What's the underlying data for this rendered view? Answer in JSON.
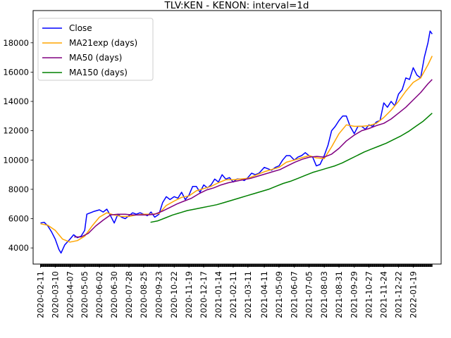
{
  "chart_data": {
    "type": "line",
    "title": "TLV:KEN - KENON: interval=1d",
    "xlabel": "",
    "ylabel": "",
    "ylim": [
      2900,
      20200
    ],
    "x_range": [
      "2020-01-28",
      "2022-03-13"
    ],
    "yticks": [
      4000,
      6000,
      8000,
      10000,
      12000,
      14000,
      16000,
      18000
    ],
    "ytick_labels": [
      "4000",
      "6000",
      "8000",
      "10000",
      "12000",
      "14000",
      "16000",
      "18000"
    ],
    "xticks": [
      "2020-02-11",
      "2020-03-10",
      "2020-04-07",
      "2020-05-05",
      "2020-06-02",
      "2020-06-30",
      "2020-07-28",
      "2020-08-25",
      "2020-09-23",
      "2020-10-22",
      "2020-11-19",
      "2020-12-17",
      "2021-01-14",
      "2021-02-11",
      "2021-03-11",
      "2021-04-11",
      "2021-05-09",
      "2021-06-07",
      "2021-07-05",
      "2021-08-03",
      "2021-08-31",
      "2021-09-29",
      "2021-10-27",
      "2021-11-24",
      "2021-12-22",
      "2022-01-19"
    ],
    "legend": {
      "placement": "upper-left"
    },
    "grid": false,
    "series": [
      {
        "name": "Close",
        "color": "#0000ff",
        "points": [
          [
            "2020-02-11",
            5700
          ],
          [
            "2020-02-18",
            5750
          ],
          [
            "2020-02-25",
            5500
          ],
          [
            "2020-03-03",
            5100
          ],
          [
            "2020-03-10",
            4600
          ],
          [
            "2020-03-17",
            3900
          ],
          [
            "2020-03-21",
            3650
          ],
          [
            "2020-03-28",
            4200
          ],
          [
            "2020-04-07",
            4600
          ],
          [
            "2020-04-14",
            4900
          ],
          [
            "2020-04-21",
            4700
          ],
          [
            "2020-04-28",
            4800
          ],
          [
            "2020-05-05",
            5200
          ],
          [
            "2020-05-09",
            6300
          ],
          [
            "2020-05-16",
            6400
          ],
          [
            "2020-05-23",
            6500
          ],
          [
            "2020-06-02",
            6600
          ],
          [
            "2020-06-09",
            6450
          ],
          [
            "2020-06-16",
            6650
          ],
          [
            "2020-06-23",
            6200
          ],
          [
            "2020-06-30",
            5700
          ],
          [
            "2020-07-07",
            6300
          ],
          [
            "2020-07-14",
            6100
          ],
          [
            "2020-07-21",
            6000
          ],
          [
            "2020-07-28",
            6200
          ],
          [
            "2020-08-04",
            6400
          ],
          [
            "2020-08-11",
            6300
          ],
          [
            "2020-08-18",
            6400
          ],
          [
            "2020-08-25",
            6300
          ],
          [
            "2020-09-01",
            6200
          ],
          [
            "2020-09-08",
            6450
          ],
          [
            "2020-09-15",
            6100
          ],
          [
            "2020-09-23",
            6300
          ],
          [
            "2020-09-30",
            7100
          ],
          [
            "2020-10-07",
            7500
          ],
          [
            "2020-10-14",
            7300
          ],
          [
            "2020-10-22",
            7500
          ],
          [
            "2020-10-29",
            7400
          ],
          [
            "2020-11-05",
            7800
          ],
          [
            "2020-11-12",
            7300
          ],
          [
            "2020-11-19",
            7600
          ],
          [
            "2020-11-26",
            8200
          ],
          [
            "2020-12-03",
            8200
          ],
          [
            "2020-12-10",
            7800
          ],
          [
            "2020-12-17",
            8300
          ],
          [
            "2020-12-24",
            8100
          ],
          [
            "2020-12-31",
            8300
          ],
          [
            "2021-01-07",
            8700
          ],
          [
            "2021-01-14",
            8500
          ],
          [
            "2021-01-21",
            9000
          ],
          [
            "2021-01-28",
            8700
          ],
          [
            "2021-02-04",
            8800
          ],
          [
            "2021-02-11",
            8500
          ],
          [
            "2021-02-18",
            8700
          ],
          [
            "2021-02-25",
            8700
          ],
          [
            "2021-03-04",
            8600
          ],
          [
            "2021-03-11",
            8800
          ],
          [
            "2021-03-18",
            9100
          ],
          [
            "2021-03-25",
            9000
          ],
          [
            "2021-04-01",
            9100
          ],
          [
            "2021-04-11",
            9500
          ],
          [
            "2021-04-18",
            9400
          ],
          [
            "2021-04-25",
            9300
          ],
          [
            "2021-05-02",
            9500
          ],
          [
            "2021-05-09",
            9600
          ],
          [
            "2021-05-16",
            10000
          ],
          [
            "2021-05-23",
            10300
          ],
          [
            "2021-05-30",
            10300
          ],
          [
            "2021-06-07",
            10000
          ],
          [
            "2021-06-14",
            10200
          ],
          [
            "2021-06-21",
            10300
          ],
          [
            "2021-06-28",
            10500
          ],
          [
            "2021-07-05",
            10300
          ],
          [
            "2021-07-12",
            10200
          ],
          [
            "2021-07-19",
            9600
          ],
          [
            "2021-07-26",
            9700
          ],
          [
            "2021-08-03",
            10300
          ],
          [
            "2021-08-10",
            11000
          ],
          [
            "2021-08-17",
            12000
          ],
          [
            "2021-08-24",
            12300
          ],
          [
            "2021-08-31",
            12700
          ],
          [
            "2021-09-07",
            13000
          ],
          [
            "2021-09-14",
            13000
          ],
          [
            "2021-09-21",
            12300
          ],
          [
            "2021-09-29",
            11800
          ],
          [
            "2021-10-06",
            12300
          ],
          [
            "2021-10-13",
            12300
          ],
          [
            "2021-10-20",
            12100
          ],
          [
            "2021-10-27",
            12400
          ],
          [
            "2021-11-03",
            12300
          ],
          [
            "2021-11-10",
            12600
          ],
          [
            "2021-11-17",
            12700
          ],
          [
            "2021-11-24",
            13900
          ],
          [
            "2021-12-01",
            13600
          ],
          [
            "2021-12-08",
            14000
          ],
          [
            "2021-12-15",
            13700
          ],
          [
            "2021-12-22",
            14500
          ],
          [
            "2021-12-29",
            14800
          ],
          [
            "2022-01-05",
            15600
          ],
          [
            "2022-01-12",
            15500
          ],
          [
            "2022-01-19",
            16300
          ],
          [
            "2022-01-26",
            15800
          ],
          [
            "2022-02-02",
            15600
          ],
          [
            "2022-02-09",
            17000
          ],
          [
            "2022-02-16",
            18000
          ],
          [
            "2022-02-20",
            18800
          ],
          [
            "2022-02-24",
            18600
          ]
        ]
      },
      {
        "name": "MA21exp (days)",
        "color": "#ffa500",
        "points": [
          [
            "2020-02-11",
            5650
          ],
          [
            "2020-02-25",
            5550
          ],
          [
            "2020-03-10",
            5200
          ],
          [
            "2020-03-24",
            4600
          ],
          [
            "2020-04-07",
            4400
          ],
          [
            "2020-04-21",
            4500
          ],
          [
            "2020-05-05",
            4800
          ],
          [
            "2020-05-19",
            5500
          ],
          [
            "2020-06-02",
            6100
          ],
          [
            "2020-06-16",
            6400
          ],
          [
            "2020-06-30",
            6250
          ],
          [
            "2020-07-14",
            6150
          ],
          [
            "2020-07-28",
            6150
          ],
          [
            "2020-08-11",
            6250
          ],
          [
            "2020-08-25",
            6300
          ],
          [
            "2020-09-08",
            6300
          ],
          [
            "2020-09-23",
            6350
          ],
          [
            "2020-10-07",
            6900
          ],
          [
            "2020-10-22",
            7200
          ],
          [
            "2020-11-05",
            7450
          ],
          [
            "2020-11-19",
            7550
          ],
          [
            "2020-12-03",
            7900
          ],
          [
            "2020-12-17",
            8050
          ],
          [
            "2020-12-31",
            8200
          ],
          [
            "2021-01-14",
            8450
          ],
          [
            "2021-01-28",
            8650
          ],
          [
            "2021-02-11",
            8650
          ],
          [
            "2021-02-25",
            8700
          ],
          [
            "2021-03-11",
            8750
          ],
          [
            "2021-03-25",
            8950
          ],
          [
            "2021-04-11",
            9200
          ],
          [
            "2021-04-25",
            9350
          ],
          [
            "2021-05-09",
            9500
          ],
          [
            "2021-05-23",
            9850
          ],
          [
            "2021-06-07",
            10000
          ],
          [
            "2021-06-21",
            10150
          ],
          [
            "2021-07-05",
            10300
          ],
          [
            "2021-07-19",
            10150
          ],
          [
            "2021-08-03",
            10100
          ],
          [
            "2021-08-17",
            10900
          ],
          [
            "2021-08-31",
            11800
          ],
          [
            "2021-09-14",
            12400
          ],
          [
            "2021-09-29",
            12300
          ],
          [
            "2021-10-13",
            12300
          ],
          [
            "2021-10-27",
            12350
          ],
          [
            "2021-11-10",
            12500
          ],
          [
            "2021-11-24",
            12900
          ],
          [
            "2021-12-08",
            13400
          ],
          [
            "2021-12-22",
            14000
          ],
          [
            "2022-01-05",
            14700
          ],
          [
            "2022-01-19",
            15300
          ],
          [
            "2022-02-02",
            15600
          ],
          [
            "2022-02-16",
            16500
          ],
          [
            "2022-02-24",
            17100
          ]
        ]
      },
      {
        "name": "MA50 (days)",
        "color": "#800080",
        "points": [
          [
            "2020-04-15",
            4750
          ],
          [
            "2020-04-28",
            4750
          ],
          [
            "2020-05-12",
            5000
          ],
          [
            "2020-05-26",
            5500
          ],
          [
            "2020-06-09",
            5900
          ],
          [
            "2020-06-23",
            6250
          ],
          [
            "2020-07-07",
            6300
          ],
          [
            "2020-07-21",
            6300
          ],
          [
            "2020-08-04",
            6250
          ],
          [
            "2020-08-18",
            6250
          ],
          [
            "2020-09-01",
            6250
          ],
          [
            "2020-09-15",
            6300
          ],
          [
            "2020-09-29",
            6500
          ],
          [
            "2020-10-13",
            6750
          ],
          [
            "2020-10-27",
            7000
          ],
          [
            "2020-11-10",
            7200
          ],
          [
            "2020-11-24",
            7400
          ],
          [
            "2020-12-08",
            7700
          ],
          [
            "2020-12-22",
            7950
          ],
          [
            "2021-01-05",
            8100
          ],
          [
            "2021-01-19",
            8300
          ],
          [
            "2021-02-02",
            8450
          ],
          [
            "2021-02-16",
            8550
          ],
          [
            "2021-03-02",
            8650
          ],
          [
            "2021-03-16",
            8750
          ],
          [
            "2021-03-30",
            8900
          ],
          [
            "2021-04-13",
            9050
          ],
          [
            "2021-04-27",
            9200
          ],
          [
            "2021-05-11",
            9350
          ],
          [
            "2021-05-25",
            9600
          ],
          [
            "2021-06-08",
            9850
          ],
          [
            "2021-06-22",
            10050
          ],
          [
            "2021-07-06",
            10200
          ],
          [
            "2021-07-20",
            10250
          ],
          [
            "2021-08-03",
            10200
          ],
          [
            "2021-08-17",
            10400
          ],
          [
            "2021-08-31",
            10800
          ],
          [
            "2021-09-14",
            11300
          ],
          [
            "2021-09-29",
            11700
          ],
          [
            "2021-10-13",
            12000
          ],
          [
            "2021-10-27",
            12150
          ],
          [
            "2021-11-10",
            12350
          ],
          [
            "2021-11-24",
            12500
          ],
          [
            "2021-12-08",
            12800
          ],
          [
            "2021-12-22",
            13200
          ],
          [
            "2022-01-05",
            13600
          ],
          [
            "2022-01-19",
            14100
          ],
          [
            "2022-02-02",
            14600
          ],
          [
            "2022-02-16",
            15200
          ],
          [
            "2022-02-24",
            15500
          ]
        ]
      },
      {
        "name": "MA150 (days)",
        "color": "#008000",
        "points": [
          [
            "2020-09-07",
            5750
          ],
          [
            "2020-09-21",
            5850
          ],
          [
            "2020-10-05",
            6050
          ],
          [
            "2020-10-19",
            6250
          ],
          [
            "2020-11-02",
            6400
          ],
          [
            "2020-11-16",
            6550
          ],
          [
            "2020-11-30",
            6650
          ],
          [
            "2020-12-14",
            6750
          ],
          [
            "2020-12-28",
            6850
          ],
          [
            "2021-01-11",
            6950
          ],
          [
            "2021-01-25",
            7100
          ],
          [
            "2021-02-08",
            7250
          ],
          [
            "2021-02-22",
            7400
          ],
          [
            "2021-03-08",
            7550
          ],
          [
            "2021-03-22",
            7700
          ],
          [
            "2021-04-05",
            7850
          ],
          [
            "2021-04-19",
            8000
          ],
          [
            "2021-05-03",
            8200
          ],
          [
            "2021-05-17",
            8400
          ],
          [
            "2021-05-31",
            8550
          ],
          [
            "2021-06-14",
            8750
          ],
          [
            "2021-06-28",
            8950
          ],
          [
            "2021-07-12",
            9150
          ],
          [
            "2021-07-26",
            9300
          ],
          [
            "2021-08-09",
            9450
          ],
          [
            "2021-08-23",
            9600
          ],
          [
            "2021-09-06",
            9800
          ],
          [
            "2021-09-20",
            10050
          ],
          [
            "2021-10-04",
            10300
          ],
          [
            "2021-10-18",
            10550
          ],
          [
            "2021-11-01",
            10750
          ],
          [
            "2021-11-15",
            10950
          ],
          [
            "2021-11-29",
            11150
          ],
          [
            "2021-12-13",
            11400
          ],
          [
            "2021-12-27",
            11650
          ],
          [
            "2022-01-10",
            11950
          ],
          [
            "2022-01-24",
            12300
          ],
          [
            "2022-02-07",
            12650
          ],
          [
            "2022-02-24",
            13200
          ]
        ]
      }
    ]
  }
}
